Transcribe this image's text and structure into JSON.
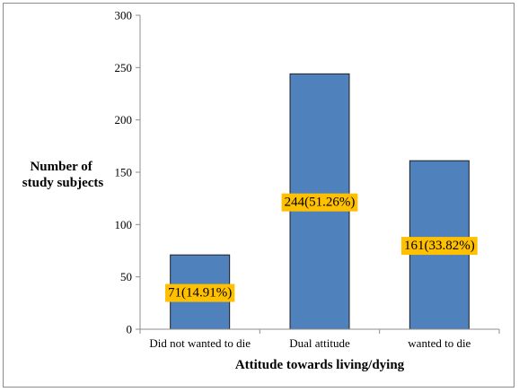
{
  "chart_data": {
    "type": "bar",
    "categories": [
      "Did not wanted to die",
      "Dual attitude",
      "wanted to die"
    ],
    "values": [
      71,
      244,
      161
    ],
    "data_labels": [
      "71(14.91%)",
      "244(51.26%)",
      "161(33.82%)"
    ],
    "title": "",
    "xlabel": "Attitude towards living/dying",
    "ylabel_lines": [
      "Number of",
      "study subjects"
    ],
    "ylim": [
      0,
      300
    ],
    "yticks": [
      0,
      50,
      100,
      150,
      200,
      250,
      300
    ],
    "grid": false,
    "legend": "none",
    "colors": {
      "bar_fill": "#4f81bd",
      "bar_stroke": "#1f1f1f",
      "label_bg": "#ffc000",
      "axis": "#8c8c8c",
      "text": "#000000"
    }
  }
}
